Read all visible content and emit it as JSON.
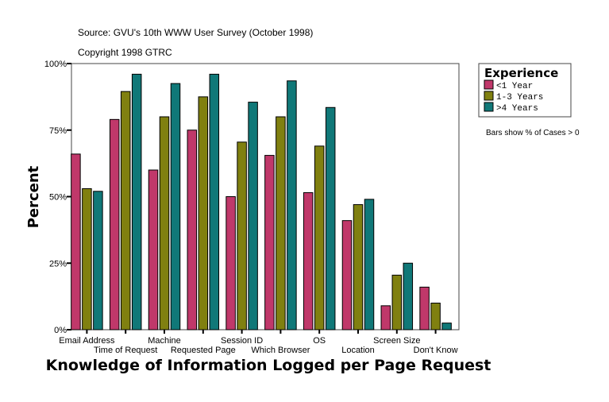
{
  "chart_data": {
    "type": "bar",
    "source": "Source: GVU's 10th WWW User Survey (October 1998)",
    "copyright": "Copyright 1998 GTRC",
    "xlabel": "Knowledge of Information Logged per Page Request",
    "ylabel": "Percent",
    "ylim": [
      0,
      100
    ],
    "yticks": [
      "0%",
      "25%",
      "50%",
      "75%",
      "100%"
    ],
    "grid": false,
    "legend_title": "Experience",
    "legend_position": "right",
    "note": "Bars show % of Cases > 0",
    "categories": [
      "Email Address",
      "Time of Request",
      "Machine",
      "Requested Page",
      "Session ID",
      "Which Browser",
      "OS",
      "Location",
      "Screen Size",
      "Don't Know"
    ],
    "series": [
      {
        "name": "<1 Year",
        "color": "#c0386a",
        "values": [
          66,
          79,
          60,
          75,
          50,
          65.5,
          51.5,
          41,
          9,
          16
        ]
      },
      {
        "name": "1-3 Years",
        "color": "#808010",
        "values": [
          53,
          89.5,
          80,
          87.5,
          70.5,
          80,
          69,
          47,
          20.5,
          10
        ]
      },
      {
        "name": ">4 Years",
        "color": "#107878",
        "values": [
          52,
          96,
          92.5,
          96,
          85.5,
          93.5,
          83.5,
          49,
          25,
          2.5
        ]
      }
    ]
  }
}
